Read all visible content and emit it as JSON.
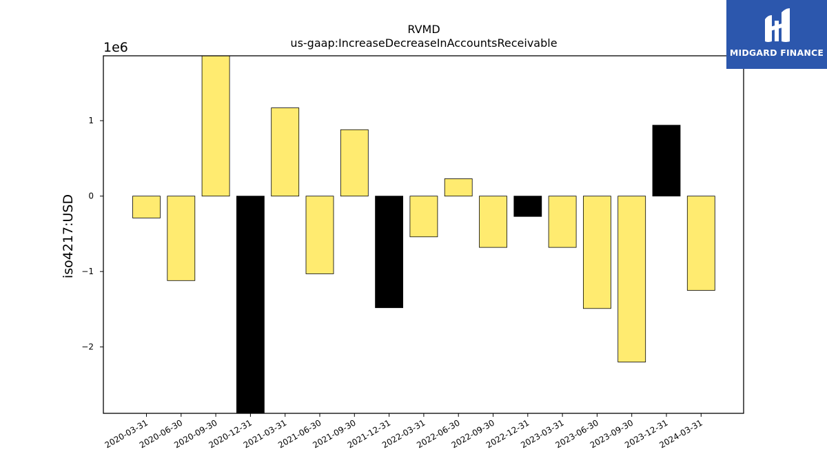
{
  "logo": {
    "text": "MIDGARD FINANCE"
  },
  "chart_data": {
    "type": "bar",
    "title": "RVMD",
    "subtitle": "us-gaap:IncreaseDecreaseInAccountsReceivable",
    "xlabel": "",
    "ylabel": "iso4217:USD",
    "y_multiplier_label": "1e6",
    "ylim": [
      -2.88,
      1.86
    ],
    "yticks": [
      1,
      0,
      -1,
      -2
    ],
    "ytick_labels": [
      "1",
      "0",
      "−1",
      "−2"
    ],
    "grid": false,
    "categories": [
      "2020-03-31",
      "2020-06-30",
      "2020-09-30",
      "2020-12-31",
      "2021-03-31",
      "2021-06-30",
      "2021-09-30",
      "2021-12-31",
      "2022-03-31",
      "2022-06-30",
      "2022-09-30",
      "2022-12-31",
      "2023-03-31",
      "2023-06-30",
      "2023-09-30",
      "2023-12-31",
      "2024-03-31"
    ],
    "values": [
      -0.29,
      -1.12,
      1.86,
      -2.88,
      1.17,
      -1.03,
      0.88,
      -1.48,
      -0.54,
      0.23,
      -0.68,
      -0.27,
      -0.68,
      -1.49,
      -2.2,
      0.94,
      -1.25
    ],
    "colors": [
      "#ffeb70",
      "#ffeb70",
      "#ffeb70",
      "#000000",
      "#ffeb70",
      "#ffeb70",
      "#ffeb70",
      "#000000",
      "#ffeb70",
      "#ffeb70",
      "#ffeb70",
      "#000000",
      "#ffeb70",
      "#ffeb70",
      "#ffeb70",
      "#000000",
      "#ffeb70"
    ],
    "unit_note": "values in millions of USD (scale 1e6)"
  }
}
